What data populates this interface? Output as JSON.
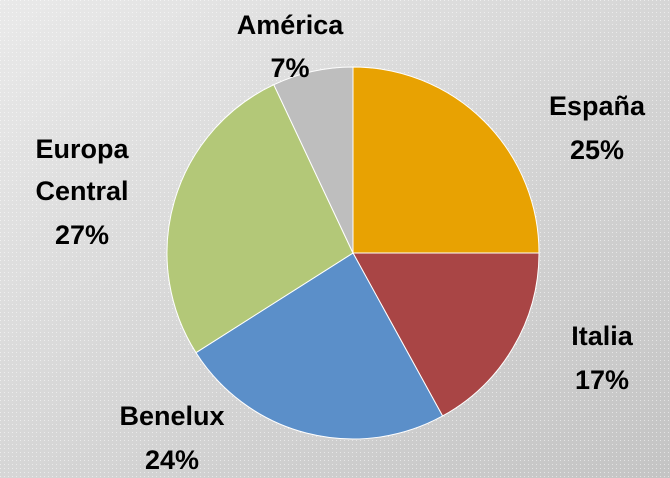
{
  "chart_data": {
    "type": "pie",
    "categories": [
      "España",
      "Italia",
      "Benelux",
      "Europa Central",
      "América"
    ],
    "values": [
      25,
      17,
      24,
      27,
      7
    ],
    "value_labels": [
      "25%",
      "17%",
      "24%",
      "27%",
      "7%"
    ],
    "colors": [
      "#E8A202",
      "#A94545",
      "#5B8FC9",
      "#B3C878",
      "#BEBEBE"
    ]
  }
}
